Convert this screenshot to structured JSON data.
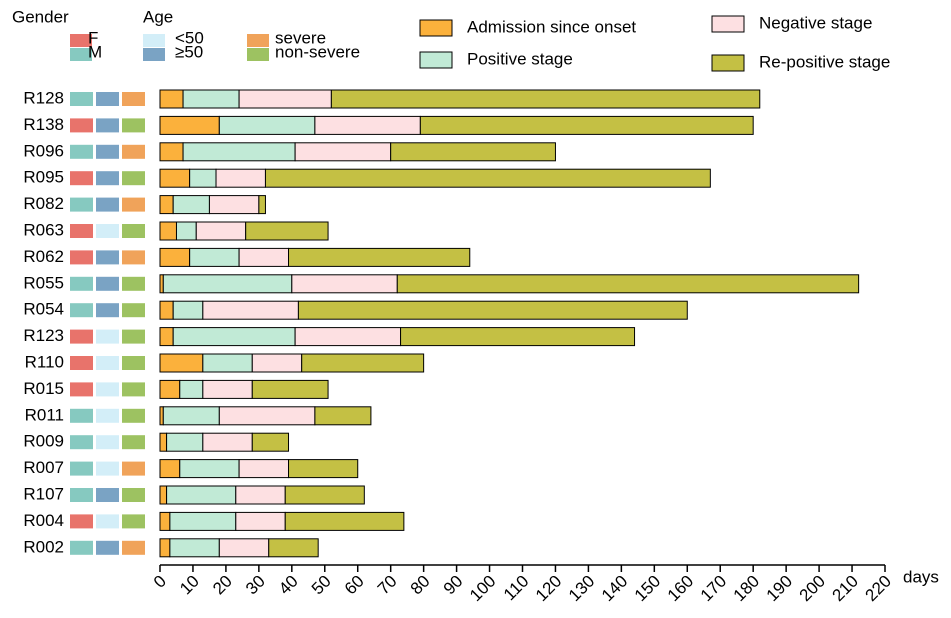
{
  "chart_data": {
    "type": "bar",
    "orientation": "horizontal",
    "stacked": true,
    "categories": [
      "R128",
      "R138",
      "R096",
      "R095",
      "R082",
      "R063",
      "R062",
      "R055",
      "R054",
      "R123",
      "R110",
      "R015",
      "R011",
      "R009",
      "R007",
      "R107",
      "R004",
      "R002"
    ],
    "series": [
      {
        "name": "Admission since onset",
        "color": "#fbb13c",
        "values": [
          7,
          18,
          7,
          9,
          4,
          5,
          9,
          1,
          4,
          4,
          13,
          6,
          1,
          2,
          6,
          2,
          3,
          3
        ]
      },
      {
        "name": "Positive stage",
        "color": "#c1ead6",
        "values": [
          17,
          29,
          34,
          8,
          11,
          6,
          15,
          39,
          9,
          37,
          15,
          7,
          17,
          11,
          18,
          21,
          20,
          15
        ]
      },
      {
        "name": "Negative stage",
        "color": "#fde0e2",
        "values": [
          28,
          32,
          29,
          15,
          15,
          15,
          15,
          32,
          29,
          32,
          15,
          15,
          29,
          15,
          15,
          15,
          15,
          15
        ]
      },
      {
        "name": "Re-positive stage",
        "color": "#c4c044",
        "values": [
          130,
          101,
          50,
          135,
          2,
          25,
          55,
          140,
          118,
          71,
          37,
          23,
          17,
          11,
          21,
          24,
          36,
          15
        ]
      }
    ],
    "xlabel": "days",
    "xlim": [
      0,
      220
    ],
    "xticks": [
      0,
      10,
      20,
      30,
      40,
      50,
      60,
      70,
      80,
      90,
      100,
      110,
      120,
      130,
      140,
      150,
      160,
      170,
      180,
      190,
      200,
      210,
      220
    ],
    "annotations": [
      {
        "title": "Gender",
        "levels": [
          {
            "label": "F",
            "color": "#e8736b"
          },
          {
            "label": "M",
            "color": "#86c9c0"
          }
        ],
        "values": [
          "M",
          "F",
          "M",
          "F",
          "M",
          "F",
          "F",
          "M",
          "M",
          "F",
          "F",
          "F",
          "M",
          "M",
          "M",
          "M",
          "F",
          "M"
        ]
      },
      {
        "title": "Age",
        "levels": [
          {
            "label": "<50",
            "color": "#d3eef8"
          },
          {
            "label": "≥50",
            "color": "#7aa3c4"
          }
        ],
        "values": [
          "≥50",
          "≥50",
          "≥50",
          "≥50",
          "≥50",
          "<50",
          "≥50",
          "≥50",
          "≥50",
          "<50",
          "<50",
          "<50",
          "<50",
          "<50",
          "<50",
          "≥50",
          "<50",
          "≥50"
        ]
      },
      {
        "levels": [
          {
            "label": "severe",
            "color": "#f0a35a"
          },
          {
            "label": "non-severe",
            "color": "#9dc261"
          }
        ],
        "values": [
          "severe",
          "non-severe",
          "severe",
          "non-severe",
          "severe",
          "non-severe",
          "severe",
          "non-severe",
          "non-severe",
          "non-severe",
          "non-severe",
          "non-severe",
          "non-severe",
          "non-severe",
          "severe",
          "non-severe",
          "non-severe",
          "severe"
        ]
      }
    ]
  }
}
